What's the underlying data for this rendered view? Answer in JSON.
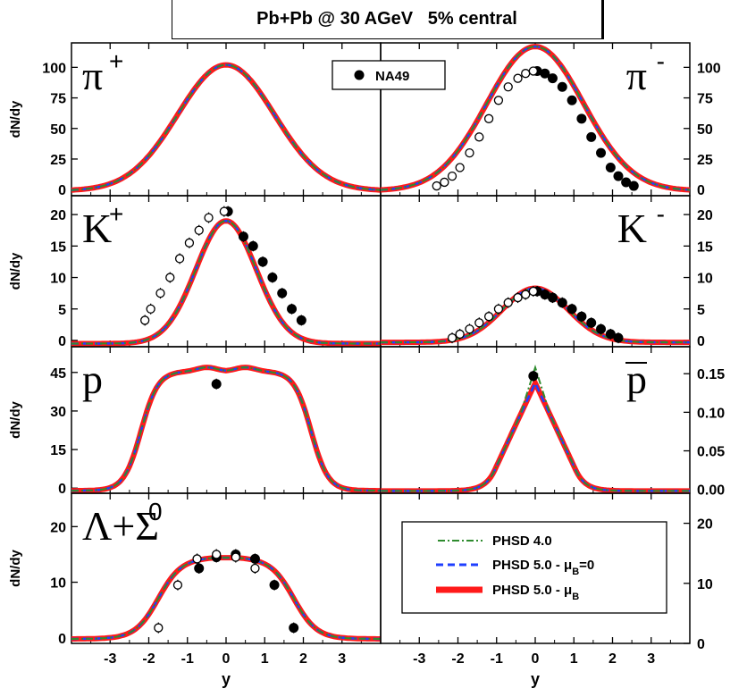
{
  "title": "Pb+Pb @ 30 AGeV   5% central",
  "xlabel": "y",
  "ylabel": "dN/dy",
  "legend_na49": "NA49",
  "chart_data": {
    "type": "line",
    "title": "Pb+Pb @ 30 AGeV   5% central",
    "xlabel": "y",
    "xlim": [
      -4,
      4
    ],
    "xticks": [
      "-3",
      "-2",
      "-1",
      "0",
      "1",
      "2",
      "3"
    ],
    "series_styles": [
      {
        "name": "PHSD 4.0",
        "color": "#2e8b2e",
        "style": "dash-dot"
      },
      {
        "name": "PHSD 5.0 - μB=0",
        "color": "#1f3fff",
        "style": "dashed"
      },
      {
        "name": "PHSD 5.0 - μB",
        "color": "#ff1a1a",
        "style": "solid-thick"
      }
    ],
    "legend": {
      "data_label": "NA49",
      "entries": [
        {
          "text": "PHSD 4.0",
          "sub": ""
        },
        {
          "text": "PHSD 5.0 - μ",
          "sub": "B",
          "suffix": "=0"
        },
        {
          "text": "PHSD 5.0 - μ",
          "sub": "B",
          "suffix": ""
        }
      ]
    },
    "panels": [
      {
        "particle": "π",
        "sup": "+",
        "ylabel": "dN/dy",
        "ylim": [
          -5,
          120
        ],
        "yticks": [
          0,
          25,
          50,
          75,
          100
        ],
        "ytick_labels": [
          "0",
          "25",
          "50",
          "75",
          "100"
        ],
        "model": {
          "type": "gauss",
          "amp": 102,
          "sigma": 1.25,
          "base": -1
        },
        "data_filled": [],
        "data_open": []
      },
      {
        "particle": "π",
        "sup": "-",
        "ylabel": "",
        "ylim": [
          -5,
          120
        ],
        "yticks": [
          0,
          25,
          50,
          75,
          100
        ],
        "ytick_labels": [
          "0",
          "25",
          "50",
          "75",
          "100"
        ],
        "model": {
          "type": "gauss",
          "amp": 117,
          "sigma": 1.25,
          "base": -1
        },
        "data_filled": [
          [
            0.05,
            97
          ],
          [
            0.25,
            95
          ],
          [
            0.45,
            91
          ],
          [
            0.7,
            84
          ],
          [
            0.95,
            73
          ],
          [
            1.2,
            58
          ],
          [
            1.45,
            43
          ],
          [
            1.7,
            30
          ],
          [
            1.95,
            18
          ],
          [
            2.15,
            11
          ],
          [
            2.35,
            6
          ],
          [
            2.55,
            3
          ]
        ],
        "data_open": [
          [
            -0.05,
            97
          ],
          [
            -0.25,
            95
          ],
          [
            -0.45,
            91
          ],
          [
            -0.7,
            84
          ],
          [
            -0.95,
            73
          ],
          [
            -1.2,
            58
          ],
          [
            -1.45,
            43
          ],
          [
            -1.7,
            30
          ],
          [
            -1.95,
            18
          ],
          [
            -2.15,
            11
          ],
          [
            -2.35,
            6
          ],
          [
            -2.55,
            3
          ]
        ]
      },
      {
        "particle": "K",
        "sup": "+",
        "ylabel": "dN/dy",
        "ylim": [
          -1,
          23
        ],
        "yticks": [
          0,
          5,
          10,
          15,
          20
        ],
        "ytick_labels": [
          "0",
          "5",
          "10",
          "15",
          "20"
        ],
        "model": {
          "type": "gauss",
          "amp": 19,
          "sigma": 0.78,
          "base": -0.5
        },
        "data_filled": [
          [
            0.05,
            20.5
          ],
          [
            0.45,
            16.5
          ],
          [
            0.7,
            15
          ],
          [
            0.95,
            12.5
          ],
          [
            1.2,
            10
          ],
          [
            1.45,
            7.5
          ],
          [
            1.7,
            5
          ],
          [
            1.95,
            3.2
          ]
        ],
        "data_open": [
          [
            -0.05,
            20.5
          ],
          [
            -0.45,
            19.5
          ],
          [
            -0.7,
            17.5
          ],
          [
            -0.95,
            15.5
          ],
          [
            -1.2,
            13
          ],
          [
            -1.45,
            10
          ],
          [
            -1.7,
            7.5
          ],
          [
            -1.95,
            5
          ],
          [
            -2.1,
            3.2
          ]
        ]
      },
      {
        "particle": "K",
        "sup": "-",
        "ylabel": "",
        "ylim": [
          -1,
          23
        ],
        "yticks": [
          0,
          5,
          10,
          15,
          20
        ],
        "ytick_labels": [
          "0",
          "5",
          "10",
          "15",
          "20"
        ],
        "model": {
          "type": "gauss",
          "amp": 8.3,
          "sigma": 0.85,
          "base": -0.3
        },
        "data_filled": [
          [
            0.05,
            7.8
          ],
          [
            0.25,
            7.3
          ],
          [
            0.45,
            6.8
          ],
          [
            0.7,
            6
          ],
          [
            0.95,
            5
          ],
          [
            1.2,
            3.8
          ],
          [
            1.45,
            2.8
          ],
          [
            1.7,
            1.8
          ],
          [
            1.95,
            1
          ],
          [
            2.15,
            0.4
          ]
        ],
        "data_open": [
          [
            -0.05,
            7.8
          ],
          [
            -0.25,
            7.3
          ],
          [
            -0.45,
            6.8
          ],
          [
            -0.7,
            6
          ],
          [
            -0.95,
            5
          ],
          [
            -1.2,
            3.8
          ],
          [
            -1.45,
            2.8
          ],
          [
            -1.7,
            1.8
          ],
          [
            -1.95,
            1
          ],
          [
            -2.15,
            0.4
          ]
        ]
      },
      {
        "particle": "p",
        "sup": "",
        "ylabel": "dN/dy",
        "ylim": [
          -2,
          55
        ],
        "yticks": [
          0,
          15,
          30,
          45
        ],
        "ytick_labels": [
          "0",
          "15",
          "30",
          "45"
        ],
        "model": {
          "type": "plateau",
          "peak": 47,
          "dip": 45.5,
          "peakpos": 0.5,
          "width": 2.2,
          "edge": 0.22,
          "base": -1
        },
        "data_filled": [
          [
            -0.25,
            40.5
          ]
        ],
        "data_open": []
      },
      {
        "particle": "p",
        "sup": "",
        "overbar": true,
        "ylabel": "",
        "ylim": [
          -0.005,
          0.185
        ],
        "yticks": [
          0,
          0.05,
          0.1,
          0.15
        ],
        "ytick_labels": [
          "0.00",
          "0.05",
          "0.10",
          "0.15"
        ],
        "model": {
          "type": "tri",
          "amp": 0.14,
          "halfwidth": 1.3,
          "base": -0.002
        },
        "data_filled": [
          [
            -0.05,
            0.147
          ]
        ],
        "data_open": []
      },
      {
        "particle": "Λ+Σ",
        "sup": "0",
        "ylabel": "dN/dy",
        "ylim": [
          -1,
          26
        ],
        "yticks": [
          0,
          10,
          20
        ],
        "ytick_labels": [
          "0",
          "10",
          "20"
        ],
        "model": {
          "type": "plateau",
          "peak": 14.5,
          "dip": 14.4,
          "peakpos": 0.3,
          "width": 1.75,
          "edge": 0.3,
          "base": -0.2
        },
        "data_filled": [
          [
            -0.7,
            12.5
          ],
          [
            -0.25,
            14.5
          ],
          [
            0.25,
            15
          ],
          [
            0.75,
            14.2
          ],
          [
            1.25,
            9.5
          ],
          [
            1.75,
            1.8
          ]
        ],
        "data_open": [
          [
            -1.75,
            1.8
          ],
          [
            -1.25,
            9.5
          ],
          [
            -0.75,
            14.2
          ],
          [
            -0.25,
            15
          ],
          [
            0.25,
            14.5
          ],
          [
            0.75,
            12.5
          ]
        ]
      },
      {
        "particle": "",
        "sup": "",
        "ylabel": "",
        "ylim": [
          0,
          25
        ],
        "yticks": [
          0,
          10,
          20
        ],
        "ytick_labels": [
          "0",
          "10",
          "20"
        ],
        "model": null,
        "data_filled": [],
        "data_open": [],
        "legend_box": true
      }
    ]
  }
}
